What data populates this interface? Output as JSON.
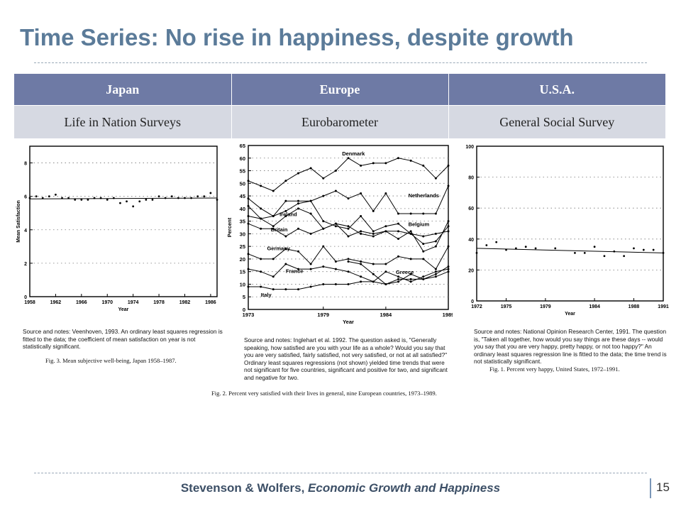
{
  "title": "Time Series: No rise in happiness, despite growth",
  "table": {
    "headers": [
      "Japan",
      "Europe",
      "U.S.A."
    ],
    "row": [
      "Life in Nation Surveys",
      "Eurobarometer",
      "General Social Survey"
    ]
  },
  "colors": {
    "title": "#5b7b99",
    "header_bg": "#6e7aa5",
    "row_bg": "#d6d9e2",
    "footer": "#3c4f66"
  },
  "footer": {
    "authors": "Stevenson & Wolfers,",
    "paper": "Economic Growth and Happiness",
    "page": "15"
  },
  "chart_data": [
    {
      "type": "scatter",
      "title": "",
      "xlabel": "Year",
      "ylabel": "Mean Satisfaction",
      "xlim": [
        1958,
        1987
      ],
      "ylim": [
        0,
        9
      ],
      "xticks": [
        1958,
        1962,
        1966,
        1970,
        1974,
        1978,
        1982,
        1986
      ],
      "yticks": [
        0,
        2,
        4,
        6,
        8
      ],
      "grid": true,
      "x": [
        1958,
        1959,
        1960,
        1961,
        1962,
        1963,
        1964,
        1965,
        1966,
        1967,
        1968,
        1969,
        1970,
        1971,
        1972,
        1973,
        1974,
        1975,
        1976,
        1977,
        1978,
        1979,
        1980,
        1981,
        1982,
        1983,
        1984,
        1985,
        1986,
        1987
      ],
      "values": [
        5.9,
        6.0,
        5.9,
        6.0,
        6.1,
        5.9,
        5.9,
        5.8,
        5.8,
        5.8,
        5.9,
        5.9,
        5.8,
        5.9,
        5.6,
        5.7,
        5.4,
        5.7,
        5.8,
        5.8,
        6.0,
        5.9,
        6.0,
        5.9,
        5.9,
        5.9,
        6.0,
        6.0,
        6.2,
        5.8
      ],
      "trend": [
        5.85,
        5.9
      ],
      "note": "Source and notes: Veenhoven, 1993. An ordinary least squares regression is fitted to the data; the coefficient of mean satisfaction on year is not statistically significant.",
      "caption": "Fig. 3. Mean subjective well-being, Japan 1958–1987."
    },
    {
      "type": "line",
      "title": "",
      "xlabel": "Year",
      "ylabel": "Percent",
      "xlim": [
        1973,
        1989
      ],
      "ylim": [
        0,
        65
      ],
      "xticks": [
        1973,
        1979,
        1984,
        1989
      ],
      "yticks": [
        0,
        5,
        10,
        15,
        20,
        25,
        30,
        35,
        40,
        45,
        50,
        55,
        60,
        65
      ],
      "grid": true,
      "x": [
        1973,
        1974,
        1975,
        1976,
        1977,
        1978,
        1979,
        1980,
        1981,
        1982,
        1983,
        1984,
        1985,
        1986,
        1987,
        1988,
        1989
      ],
      "series": [
        {
          "name": "Denmark",
          "values": [
            51,
            49,
            47,
            51,
            54,
            56,
            52,
            55,
            60,
            57,
            58,
            58,
            60,
            59,
            57,
            52,
            57
          ]
        },
        {
          "name": "Netherlands",
          "values": [
            44,
            40,
            37,
            43,
            43,
            43,
            45,
            47,
            44,
            46,
            39,
            46,
            38,
            38,
            38,
            38,
            49
          ]
        },
        {
          "name": "Ireland",
          "values": [
            41,
            36,
            37,
            39,
            42,
            43,
            35,
            33,
            32,
            37,
            31,
            33,
            34,
            30,
            26,
            27,
            33
          ]
        },
        {
          "name": "Belgium",
          "values": [
            37,
            36,
            33,
            37,
            40,
            38,
            32,
            34,
            29,
            31,
            30,
            31,
            31,
            30,
            29,
            30,
            31
          ]
        },
        {
          "name": "Britain",
          "values": [
            34,
            32,
            32,
            29,
            32,
            30,
            32,
            34,
            33,
            30,
            29,
            31,
            28,
            31,
            23,
            25,
            35
          ]
        },
        {
          "name": "Germany",
          "values": [
            22,
            20,
            20,
            24,
            23,
            18,
            25,
            19,
            20,
            19,
            18,
            18,
            21,
            20,
            20,
            16,
            25
          ]
        },
        {
          "name": "France",
          "values": [
            16,
            15,
            13,
            18,
            16,
            16,
            17,
            16,
            15,
            13,
            11,
            15,
            13,
            11,
            13,
            15,
            16
          ]
        },
        {
          "name": "Greece",
          "values": [
            null,
            null,
            null,
            null,
            null,
            null,
            null,
            null,
            19,
            18,
            14,
            10,
            12,
            12,
            12,
            13,
            15
          ]
        },
        {
          "name": "Italy",
          "values": [
            9,
            9,
            8,
            8,
            8,
            9,
            10,
            10,
            10,
            11,
            11,
            10,
            11,
            14,
            12,
            14,
            17
          ]
        }
      ],
      "note": "Source and notes: Inglehart et al. 1992. The question asked is, \"Generally speaking, how satisfied are you with your life as a whole? Would you say that you are very satisfied, fairly satisfied, not very satisfied, or not at all satisfied?\" Ordinary least squares regressions (not shown) yielded time trends that were not significant for five countries, significant and positive for two, and significant and negative for two.",
      "caption": "Fig. 2. Percent very satisfied with their lives in general, nine European countries, 1973–1989."
    },
    {
      "type": "scatter",
      "title": "",
      "xlabel": "Year",
      "ylabel": "",
      "xlim": [
        1972,
        1991
      ],
      "ylim": [
        0,
        100
      ],
      "xticks": [
        1972,
        1975,
        1979,
        1984,
        1988,
        1991
      ],
      "yticks": [
        0,
        20,
        40,
        60,
        80,
        100
      ],
      "grid": true,
      "x": [
        1972,
        1973,
        1974,
        1975,
        1976,
        1977,
        1978,
        1980,
        1982,
        1983,
        1984,
        1985,
        1986,
        1987,
        1988,
        1989,
        1990,
        1991
      ],
      "values": [
        31,
        36,
        38,
        33,
        34,
        35,
        34,
        34,
        31,
        31,
        35,
        29,
        32,
        29,
        34,
        33,
        33,
        31
      ],
      "trend": [
        34,
        31
      ],
      "note": "Source and notes: National Opinion Research Center, 1991. The question is, \"Taken all together, how would you say things are these days -- would you say that you are very happy, pretty happy, or not too happy?\" An ordinary least squares regression line is fitted to the data; the time trend is not statistically significant.",
      "caption": "Fig. 1. Percent very happy, United States, 1972–1991."
    }
  ]
}
